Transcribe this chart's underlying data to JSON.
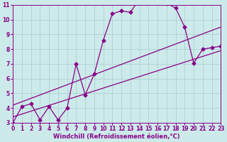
{
  "xlabel": "Windchill (Refroidissement éolien,°C)",
  "xlim": [
    0,
    23
  ],
  "ylim": [
    3,
    11
  ],
  "xticks": [
    0,
    1,
    2,
    3,
    4,
    5,
    6,
    7,
    8,
    9,
    10,
    11,
    12,
    13,
    14,
    15,
    16,
    17,
    18,
    19,
    20,
    21,
    22,
    23
  ],
  "yticks": [
    3,
    4,
    5,
    6,
    7,
    8,
    9,
    10,
    11
  ],
  "bg_color": "#cdeaea",
  "line_color": "#880088",
  "grid_color": "#a8cccc",
  "data_x": [
    0,
    1,
    2,
    3,
    4,
    5,
    6,
    7,
    8,
    9,
    10,
    11,
    12,
    13,
    14,
    15,
    16,
    17,
    18,
    19,
    20,
    21,
    22,
    23
  ],
  "data_y": [
    3.0,
    4.1,
    4.3,
    3.2,
    4.1,
    3.2,
    4.0,
    7.0,
    4.9,
    6.3,
    8.6,
    10.4,
    10.6,
    10.5,
    11.4,
    11.2,
    11.4,
    11.1,
    10.8,
    9.5,
    7.05,
    8.0,
    8.1,
    8.2
  ],
  "trend1_x": [
    0,
    23
  ],
  "trend1_y": [
    3.4,
    7.9
  ],
  "trend2_x": [
    0,
    23
  ],
  "trend2_y": [
    4.2,
    9.5
  ],
  "marker": "D",
  "marker_size": 2.5,
  "linewidth": 0.9,
  "tick_fontsize": 5.5,
  "label_fontsize": 6.0
}
